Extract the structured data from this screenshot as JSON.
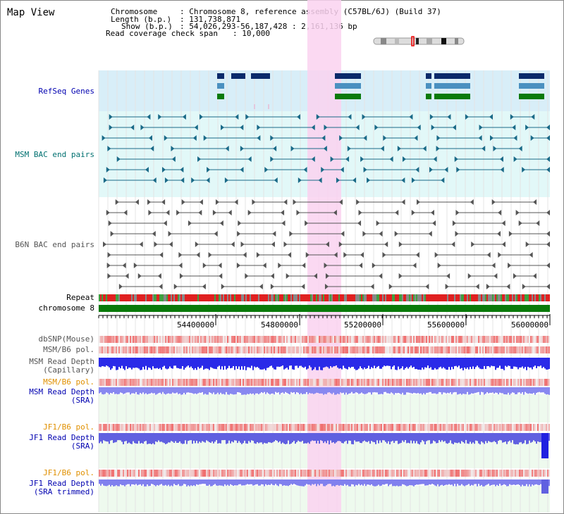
{
  "title": "Map View",
  "info": {
    "chromosome_label": "Chromosome",
    "chromosome_value": ": Chromosome 8, reference assembly (C57BL/6J) (Build 37)",
    "length_label": "Length (b.p.)",
    "length_value": ": 131,738,871",
    "show_label": "Show (b.p.)",
    "show_value": ": 54,026,293-56,187,428 : 2,161,136 bp",
    "coverage_label": "Read coverage check span",
    "coverage_value": ": 10,000"
  },
  "tracks": {
    "refseq": "RefSeq Genes",
    "msm_bac": "MSM BAC end pairs",
    "b6n_bac": "B6N BAC end pairs",
    "repeat": "Repeat",
    "chromosome": "chromosome 8",
    "dbsnp": "dbSNP(Mouse)",
    "msm_b6_pol_1": "MSM/B6 pol.",
    "msm_read_depth_cap": "MSM Read Depth\n(Capillary)",
    "msm_b6_pol_2": "MSM/B6 pol.",
    "msm_read_depth_sra": "MSM Read Depth\n(SRA)",
    "jf1_b6_pol_1": "JF1/B6 pol.",
    "jf1_read_depth_sra": "JF1 Read Depth\n(SRA)",
    "jf1_b6_pol_2": "JF1/B6 pol.",
    "jf1_read_depth_trim": "JF1 Read Depth\n(SRA trimmed)"
  },
  "axis": {
    "ticks": [
      "54400000",
      "54800000",
      "55200000",
      "55600000",
      "56000000"
    ]
  },
  "colors": {
    "highlight": "#fad2f0",
    "refseq_bg": "#d8eef8",
    "msm_bg": "#e2f8f8",
    "depth_blue": "#2a2ae8",
    "chrom_green": "#0a7a0a"
  }
}
